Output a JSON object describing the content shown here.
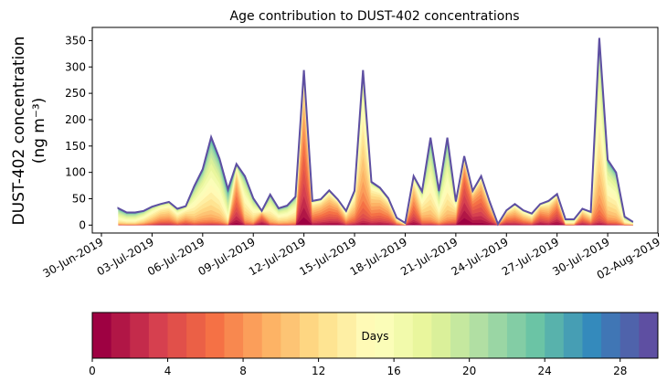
{
  "chart_data": {
    "type": "area",
    "stacked": true,
    "title": "Age contribution to DUST-402 concentrations",
    "ylabel_line1": "DUST-402 concentration",
    "ylabel_line2": "(ng m⁻³)",
    "xlabel": "",
    "ylim": [
      -15,
      375
    ],
    "yticks": [
      0,
      50,
      100,
      150,
      200,
      250,
      300,
      350
    ],
    "xticks": [
      "30-Jun-2019",
      "03-Jul-2019",
      "06-Jul-2019",
      "09-Jul-2019",
      "12-Jul-2019",
      "15-Jul-2019",
      "18-Jul-2019",
      "21-Jul-2019",
      "24-Jul-2019",
      "27-Jul-2019",
      "30-Jul-2019",
      "02-Aug-2019"
    ],
    "x_start": "01-Jul-2019 00:00",
    "x_step_hours": 12,
    "age_bins_days": 30,
    "age_spread_days": 4.5,
    "totals": [
      32,
      24,
      24,
      27,
      35,
      40,
      44,
      31,
      36,
      74,
      106,
      167,
      126,
      68,
      116,
      93,
      51,
      27,
      58,
      32,
      37,
      54,
      294,
      46,
      49,
      66,
      49,
      27,
      65,
      294,
      82,
      71,
      51,
      14,
      4,
      93,
      64,
      166,
      65,
      166,
      45,
      131,
      65,
      93,
      45,
      2,
      28,
      40,
      28,
      22,
      40,
      46,
      59,
      11,
      11,
      31,
      25,
      355,
      124,
      100,
      16,
      6
    ],
    "dominant_age_days": [
      16,
      16,
      16,
      14,
      12,
      10,
      10,
      12,
      10,
      14,
      14,
      15,
      15,
      18,
      6,
      14,
      14,
      4,
      14,
      14,
      14,
      14,
      5,
      8,
      7,
      7,
      6,
      10,
      10,
      11,
      9,
      8,
      8,
      10,
      14,
      7,
      12,
      15,
      15,
      15,
      10,
      2,
      4,
      5,
      6,
      10,
      7,
      8,
      9,
      10,
      6,
      8,
      5,
      14,
      14,
      7,
      10,
      13,
      14,
      14,
      15,
      14
    ],
    "colorbar": {
      "label": "Days",
      "ticks": [
        0,
        4,
        8,
        12,
        16,
        20,
        24,
        28
      ],
      "range": [
        0,
        30
      ],
      "colormap_anchors": [
        "#9e0142",
        "#d53e4f",
        "#f46d43",
        "#fdae61",
        "#fee08b",
        "#ffffbf",
        "#e6f598",
        "#abdda4",
        "#66c2a5",
        "#3288bd",
        "#5e4fa2"
      ]
    }
  }
}
